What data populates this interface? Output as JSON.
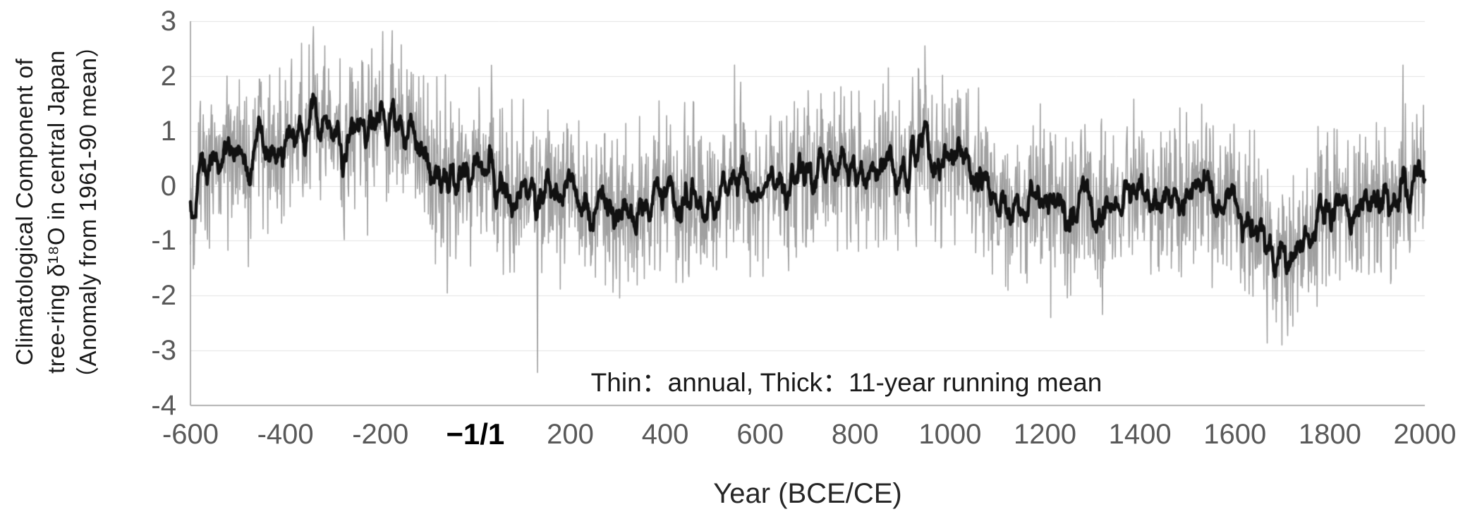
{
  "figure": {
    "y_axis_title_lines": [
      "Climatological Component of",
      "tree-ring δ¹⁸O in central Japan",
      "（Anomaly from 1961-90 mean）"
    ],
    "x_axis_title": "Year (BCE/CE)",
    "annotation": "Thin：annual,  Thick：11-year running mean"
  },
  "chart_data": {
    "type": "line",
    "title": "",
    "xlabel": "Year (BCE/CE)",
    "ylabel": "Climatological Component of tree-ring δ¹⁸O in central Japan (Anomaly from 1961-90 mean)",
    "xlim": [
      -600,
      2000
    ],
    "ylim": [
      -4,
      3
    ],
    "grid": true,
    "legend_text": "Thin：annual,  Thick：11-year running mean",
    "x_ticks": [
      {
        "year": -600,
        "label": "-600",
        "emphasis": false
      },
      {
        "year": -400,
        "label": "-400",
        "emphasis": false
      },
      {
        "year": -200,
        "label": "-200",
        "emphasis": false
      },
      {
        "year": 0,
        "label": "−1/1",
        "emphasis": true
      },
      {
        "year": 200,
        "label": "200",
        "emphasis": false
      },
      {
        "year": 400,
        "label": "400",
        "emphasis": false
      },
      {
        "year": 600,
        "label": "600",
        "emphasis": false
      },
      {
        "year": 800,
        "label": "800",
        "emphasis": false
      },
      {
        "year": 1000,
        "label": "1000",
        "emphasis": false
      },
      {
        "year": 1200,
        "label": "1200",
        "emphasis": false
      },
      {
        "year": 1400,
        "label": "1400",
        "emphasis": false
      },
      {
        "year": 1600,
        "label": "1600",
        "emphasis": false
      },
      {
        "year": 1800,
        "label": "1800",
        "emphasis": false
      },
      {
        "year": 2000,
        "label": "2000",
        "emphasis": false
      }
    ],
    "y_ticks": [
      {
        "value": 3,
        "label": "3"
      },
      {
        "value": 2,
        "label": "2"
      },
      {
        "value": 1,
        "label": "1"
      },
      {
        "value": 0,
        "label": "0"
      },
      {
        "value": -1,
        "label": "-1"
      },
      {
        "value": -2,
        "label": "-2"
      },
      {
        "value": -3,
        "label": "-3"
      },
      {
        "value": -4,
        "label": "-4"
      }
    ],
    "series": [
      {
        "name": "annual",
        "style": "thin",
        "color": "#a0a0a0",
        "derivation": "running_mean_control_plus_noise"
      },
      {
        "name": "11-year running mean",
        "style": "thick",
        "color": "#111111",
        "window": 11
      }
    ],
    "mean_series": {
      "x_start": -600,
      "x_step": 20,
      "values": [
        -0.8,
        0.35,
        0.5,
        0.45,
        0.6,
        0.75,
        0.6,
        0.85,
        0.65,
        0.8,
        0.7,
        0.9,
        1.0,
        0.85,
        1.05,
        0.9,
        0.8,
        1.0,
        0.95,
        1.1,
        1.2,
        1.05,
        0.9,
        1.0,
        0.85,
        0.5,
        0.15,
        -0.1,
        0.25,
        0.1,
        0.3,
        0.45,
        0.2,
        0.0,
        -0.15,
        0.1,
        -0.45,
        -0.25,
        0.05,
        -0.1,
        0.0,
        -0.25,
        -0.35,
        -0.15,
        -0.4,
        -0.3,
        -0.15,
        -0.35,
        -0.2,
        -0.05,
        -0.2,
        0.0,
        -0.25,
        -0.1,
        -0.3,
        -0.1,
        0.1,
        -0.15,
        0.05,
        -0.25,
        -0.05,
        0.15,
        0.0,
        -0.15,
        0.1,
        0.25,
        0.05,
        0.3,
        0.15,
        0.35,
        0.3,
        0.1,
        0.35,
        0.2,
        0.45,
        0.4,
        0.55,
        0.9,
        0.75,
        0.4,
        0.5,
        0.3,
        0.4,
        0.1,
        0.15,
        -0.2,
        -0.4,
        -0.3,
        -0.5,
        -0.3,
        -0.4,
        -0.2,
        -0.45,
        -0.3,
        -0.1,
        -0.35,
        -0.55,
        -0.3,
        -0.1,
        -0.2,
        0.0,
        -0.2,
        -0.3,
        -0.1,
        -0.25,
        -0.05,
        -0.15,
        0.05,
        -0.2,
        -0.4,
        -0.55,
        -0.65,
        -0.75,
        -0.95,
        -1.15,
        -1.35,
        -1.6,
        -0.9,
        -0.65,
        -0.5,
        -0.45,
        -0.6,
        -0.35,
        -0.5,
        -0.25,
        -0.35,
        -0.15,
        0.0,
        -0.15,
        0.1,
        0.3
      ]
    },
    "annual_noise_std": 0.72,
    "annual_value_range": [
      -3.6,
      2.95
    ],
    "annual_extremes": [
      {
        "year": -341,
        "value": 2.9
      },
      {
        "year": -218,
        "value": 2.5
      },
      {
        "year": 131,
        "value": -3.4
      },
      {
        "year": 546,
        "value": 2.2
      },
      {
        "year": 947,
        "value": 2.55
      },
      {
        "year": 1212,
        "value": -2.4
      },
      {
        "year": 1699,
        "value": -2.9
      },
      {
        "year": 1954,
        "value": 2.2
      }
    ],
    "noise_seed": 20240613,
    "colors": {
      "grid": "#e2e2e2",
      "axis": "#b0b0b0",
      "tick_label": "#595959",
      "emphasis_label": "#000000",
      "annotation": "#1a1a1a",
      "axis_title": "#262626",
      "thin_line": "#a0a0a0",
      "thick_line": "#111111"
    }
  }
}
